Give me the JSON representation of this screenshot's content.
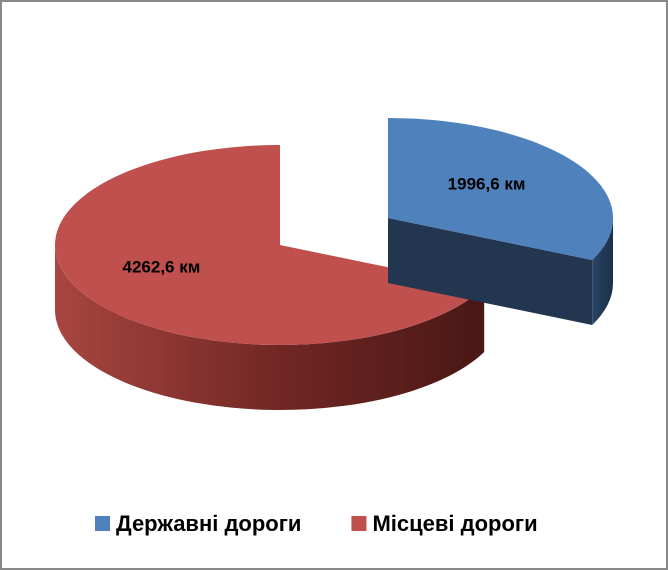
{
  "chart_data": {
    "type": "pie",
    "style": "3d-exploded",
    "categories": [
      "Державні дороги",
      "Місцеві дороги"
    ],
    "values": [
      1996.6,
      4262.6
    ],
    "value_labels": [
      "1996,6 км",
      "4262,6 км"
    ],
    "colors": [
      "#4f81bd",
      "#c0504d"
    ],
    "exploded": [
      true,
      false
    ],
    "legend": "bottom"
  }
}
